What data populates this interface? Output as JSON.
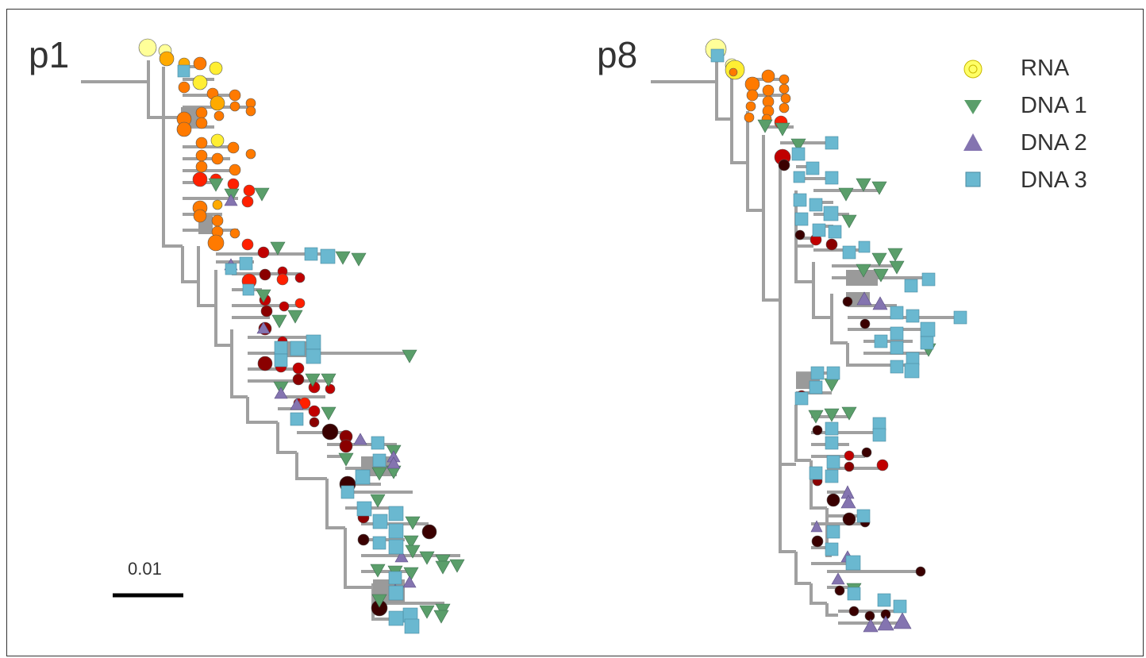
{
  "panels": [
    {
      "label": "p1"
    },
    {
      "label": "p8"
    }
  ],
  "legend": [
    {
      "label": "RNA",
      "shape": "circle",
      "color": "#ffff66"
    },
    {
      "label": "DNA 1",
      "shape": "triangle-down",
      "color": "#5a9e6a"
    },
    {
      "label": "DNA 2",
      "shape": "triangle-up",
      "color": "#8474b0"
    },
    {
      "label": "DNA 3",
      "shape": "square",
      "color": "#6ab8d0"
    }
  ],
  "scale_bar": {
    "label": "0.01"
  },
  "colors": {
    "branch": "#a0a0a0",
    "rna_time_gradient": [
      "#ffff99",
      "#ffee33",
      "#ffaa00",
      "#ff7a00",
      "#ff2000",
      "#c00000",
      "#8a0000",
      "#3a0000"
    ]
  }
}
